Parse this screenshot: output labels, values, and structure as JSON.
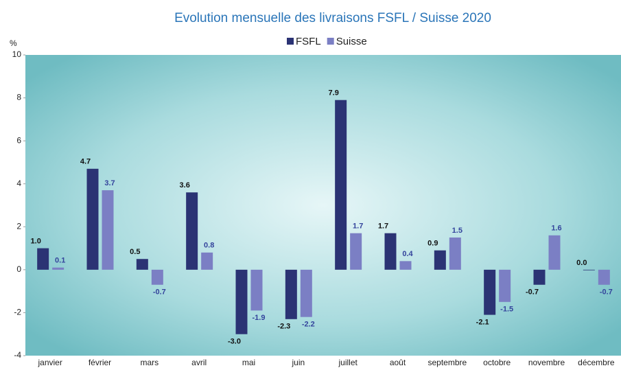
{
  "chart_data": {
    "type": "bar",
    "title": "Evolution mensuelle des livraisons FSFL / Suisse 2020",
    "y_label": "%",
    "categories": [
      "janvier",
      "février",
      "mars",
      "avril",
      "mai",
      "juin",
      "juillet",
      "août",
      "septembre",
      "octobre",
      "novembre",
      "décembre"
    ],
    "series": [
      {
        "name": "FSFL",
        "color": "#2b3374",
        "label_color": "#111111",
        "values": [
          1.0,
          4.7,
          0.5,
          3.6,
          -3.0,
          -2.3,
          7.9,
          1.7,
          0.9,
          -2.1,
          -0.7,
          0.0
        ],
        "value_labels": [
          "1.0",
          "4.7",
          "0.5",
          "3.6",
          "-3.0",
          "-2.3",
          "7.9",
          "1.7",
          "0.9",
          "-2.1",
          "-0.7",
          "0.0"
        ]
      },
      {
        "name": "Suisse",
        "color": "#7b7fc4",
        "label_color": "#34449c",
        "values": [
          0.1,
          3.7,
          -0.7,
          0.8,
          -1.9,
          -2.2,
          1.7,
          0.4,
          1.5,
          -1.5,
          1.6,
          -0.7
        ],
        "value_labels": [
          "0.1",
          "3.7",
          "-0.7",
          "0.8",
          "-1.9",
          "-2.2",
          "1.7",
          "0.4",
          "1.5",
          "-1.5",
          "1.6",
          "-0.7"
        ]
      }
    ],
    "ylim": [
      -4,
      10
    ],
    "yticks": [
      -4,
      -2,
      0,
      2,
      4,
      6,
      8,
      10
    ],
    "grid": false,
    "legend": "top"
  }
}
